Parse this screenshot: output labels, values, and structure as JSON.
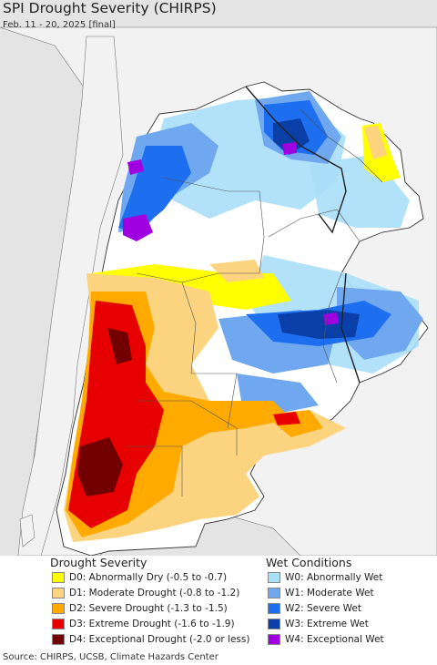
{
  "title": "SPI Drought Severity (CHIRPS)",
  "subtitle": "Feb. 11 - 20, 2025 [final]",
  "source": "Source: CHIRPS, UCSB, Climate Hazards Center",
  "colors": {
    "ocean": "#e4e4e4",
    "land_outside": "#f2f2f2",
    "land": "#ffffff",
    "border": "#333333",
    "D0": "#ffff00",
    "D1": "#fcd37f",
    "D2": "#ffaa00",
    "D3": "#e60000",
    "D4": "#730000",
    "W0": "#aadff8",
    "W1": "#6fa8ef",
    "W2": "#1e6ef0",
    "W3": "#0a3fa8",
    "W4": "#a000e0"
  },
  "legend": {
    "drought_title": "Drought Severity",
    "wet_title": "Wet Conditions",
    "drought": [
      {
        "code": "D0",
        "label": "D0: Abnormally Dry (-0.5 to -0.7)"
      },
      {
        "code": "D1",
        "label": "D1: Moderate Drought (-0.8 to -1.2)"
      },
      {
        "code": "D2",
        "label": "D2: Severe Drought (-1.3 to -1.5)"
      },
      {
        "code": "D3",
        "label": "D3: Extreme Drought (-1.6 to -1.9)"
      },
      {
        "code": "D4",
        "label": "D4: Exceptional Drought (-2.0 or less)"
      }
    ],
    "wet": [
      {
        "code": "W0",
        "label": "W0: Abnormally Wet"
      },
      {
        "code": "W1",
        "label": "W1: Moderate Wet"
      },
      {
        "code": "W2",
        "label": "W2: Severe Wet"
      },
      {
        "code": "W3",
        "label": "W3: Extreme Wet"
      },
      {
        "code": "W4",
        "label": "W4: Exceptional Wet"
      }
    ]
  }
}
